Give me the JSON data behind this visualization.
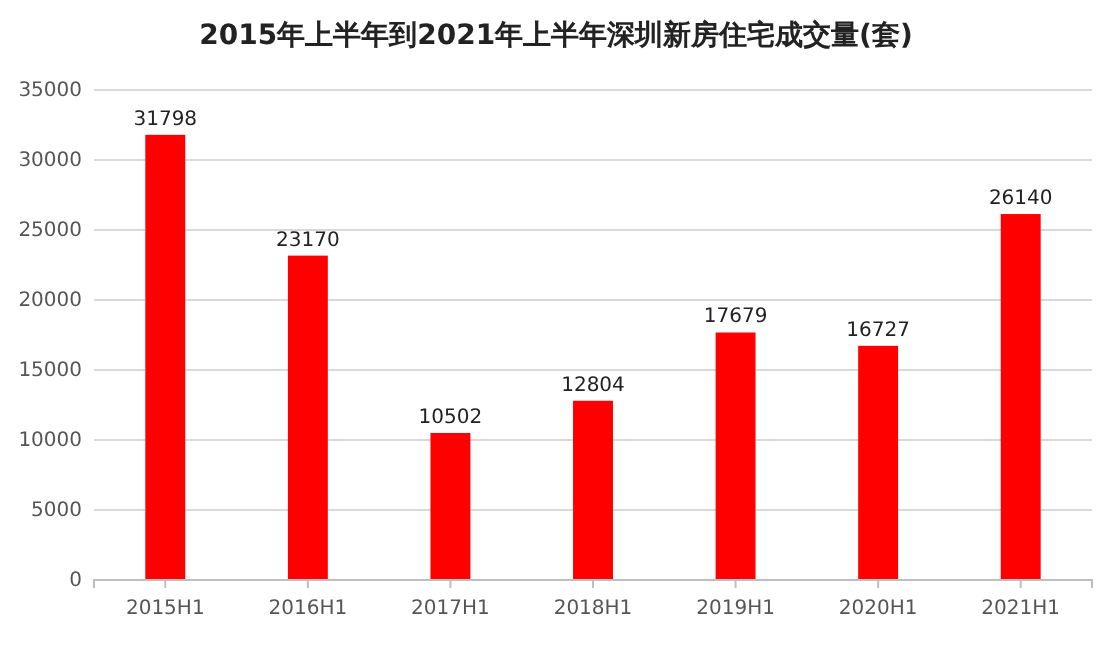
{
  "chart_data": {
    "type": "bar",
    "title": "2015年上半年到2021年上半年深圳新房住宅成交量(套)",
    "categories": [
      "2015H1",
      "2016H1",
      "2017H1",
      "2018H1",
      "2019H1",
      "2020H1",
      "2021H1"
    ],
    "values": [
      31798,
      23170,
      10502,
      12804,
      17679,
      16727,
      26140
    ],
    "color": "#ff0000",
    "ylim": [
      0,
      35000
    ],
    "yticks": [
      0,
      5000,
      10000,
      15000,
      20000,
      25000,
      30000,
      35000
    ],
    "grid": "y",
    "data_labels": true
  }
}
